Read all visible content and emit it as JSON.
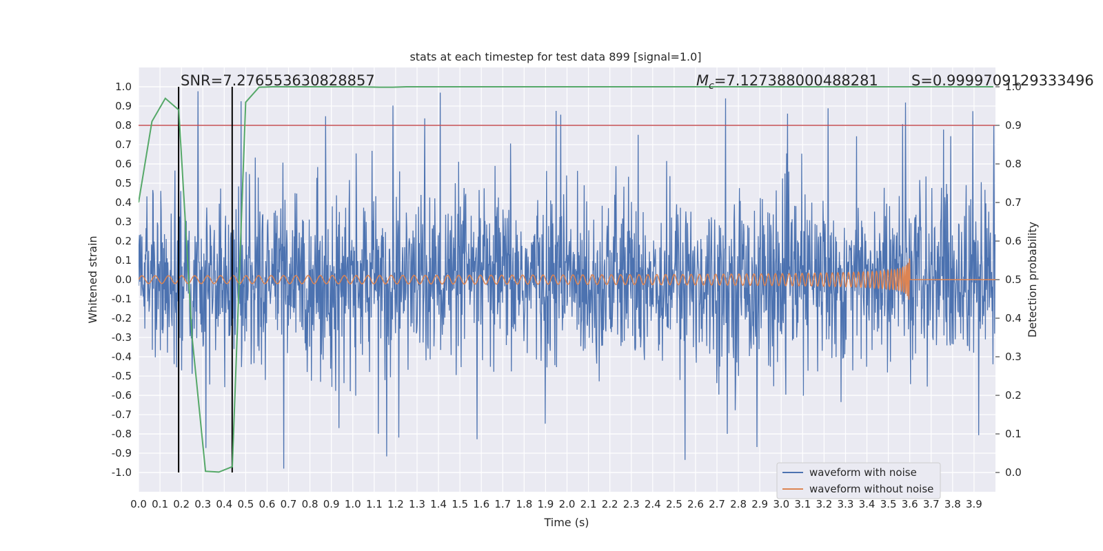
{
  "chart_data": {
    "type": "line",
    "title": "stats at each timestep for test data 899 [signal=1.0]",
    "xlabel": "Time (s)",
    "ylabel": "Whitened strain",
    "y2label": "Detection probability",
    "xlim": [
      0.0,
      4.0
    ],
    "ylim": [
      -1.1,
      1.1
    ],
    "y2lim": [
      -0.05,
      1.05
    ],
    "x_ticks": [
      "0.0",
      "0.1",
      "0.2",
      "0.3",
      "0.4",
      "0.5",
      "0.6",
      "0.7",
      "0.8",
      "0.9",
      "1.0",
      "1.1",
      "1.2",
      "1.3",
      "1.4",
      "1.5",
      "1.6",
      "1.7",
      "1.8",
      "1.9",
      "2.0",
      "2.1",
      "2.2",
      "2.3",
      "2.4",
      "2.5",
      "2.6",
      "2.7",
      "2.8",
      "2.9",
      "3.0",
      "3.1",
      "3.2",
      "3.3",
      "3.4",
      "3.5",
      "3.6",
      "3.7",
      "3.8",
      "3.9"
    ],
    "y_ticks": [
      "1.0",
      "0.9",
      "0.8",
      "0.7",
      "0.6",
      "0.5",
      "0.4",
      "0.3",
      "0.2",
      "0.1",
      "0.0",
      "-0.1",
      "-0.2",
      "-0.3",
      "-0.4",
      "-0.5",
      "-0.6",
      "-0.7",
      "-0.8",
      "-0.9",
      "-1.0"
    ],
    "y2_ticks": [
      "1.0",
      "0.9",
      "0.8",
      "0.7",
      "0.6",
      "0.5",
      "0.4",
      "0.3",
      "0.2",
      "0.1",
      "0.0"
    ],
    "grid": true,
    "legend_position": "lower-right",
    "annotations": {
      "snr": "SNR=7.276553630828857",
      "mc_symbol": "M",
      "mc_sub": "c",
      "mc_value": "=7.127388000488281",
      "s": "S=0.9999709129333496"
    },
    "threshold_line": {
      "axis": "y2",
      "value": 0.9,
      "color": "#c44e52"
    },
    "vertical_markers": {
      "x": [
        0.187,
        0.437
      ],
      "y_range": [
        -1.0,
        1.0
      ],
      "color": "#000000"
    },
    "series": [
      {
        "name": "waveform with noise",
        "color": "#4c72b0",
        "axis": "y",
        "description_values": "dense whitened strain noise, roughly within -0.6..0.6 with occasional spikes up to about 1.0 and down to about -0.97",
        "n_samples": 2048,
        "amplitude_envelope": 0.3
      },
      {
        "name": "waveform without noise",
        "color": "#dd8452",
        "axis": "y",
        "chirp": {
          "t_start": 0.0,
          "t_merger": 3.6,
          "amp_start": 0.02,
          "amp_peak": 0.25,
          "f_start": 16,
          "f_end": 150
        }
      },
      {
        "name": "detection probability",
        "color": "#55a868",
        "axis": "y2",
        "x": [
          0.0,
          0.0625,
          0.125,
          0.1875,
          0.25,
          0.3125,
          0.375,
          0.4375,
          0.5,
          0.5625,
          0.625,
          0.6875,
          0.75,
          0.8125,
          0.875,
          0.9375,
          1.0,
          1.0625,
          1.125,
          1.1875,
          1.25,
          1.5,
          2.0,
          2.5,
          3.0,
          3.5,
          3.99
        ],
        "y": [
          0.7,
          0.91,
          0.97,
          0.94,
          0.35,
          0.003,
          0.001,
          0.015,
          0.96,
          0.999,
          1.0,
          1.0,
          1.0,
          1.0,
          1.0,
          1.0,
          1.0,
          0.9995,
          0.999,
          0.999,
          1.0,
          1.0,
          1.0,
          1.0,
          1.0,
          1.0,
          1.0
        ]
      }
    ]
  }
}
